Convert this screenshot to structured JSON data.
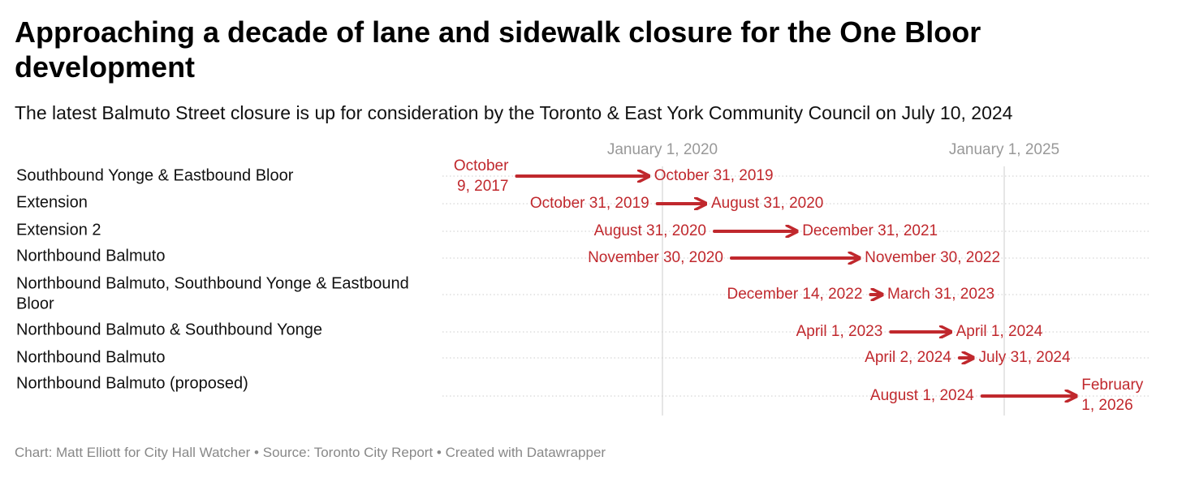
{
  "title": "Approaching a decade of lane and sidewalk closure for the One Bloor development",
  "subtitle": "The latest Balmuto Street closure is up for consideration by the Toronto & East York Community Council on July 10, 2024",
  "footer": "Chart: Matt Elliott for City Hall Watcher • Source: Toronto City Report • Created with Datawrapper",
  "colors": {
    "arrow": "#c0282d",
    "grid": "#cccccc",
    "axis_text": "#999999"
  },
  "chart_data": {
    "type": "range-arrow",
    "title": "Approaching a decade of lane and sidewalk closure for the One Bloor development",
    "subtitle": "The latest Balmuto Street closure is up for consideration by the Toronto & East York Community Council on July 10, 2024",
    "x_ticks": [
      {
        "date": "2020-01-01",
        "label": "January 1, 2020"
      },
      {
        "date": "2025-01-01",
        "label": "January 1, 2025"
      }
    ],
    "grid": true,
    "rows": [
      {
        "label": "Southbound Yonge & Eastbound Bloor",
        "start": "2017-10-09",
        "end": "2019-10-31",
        "start_label": "October 9, 2017",
        "end_label": "October 31, 2019"
      },
      {
        "label": "Extension",
        "start": "2019-10-31",
        "end": "2020-08-31",
        "start_label": "October 31, 2019",
        "end_label": "August 31, 2020"
      },
      {
        "label": "Extension 2",
        "start": "2020-08-31",
        "end": "2021-12-31",
        "start_label": "August 31, 2020",
        "end_label": "December 31, 2021"
      },
      {
        "label": "Northbound Balmuto",
        "start": "2020-11-30",
        "end": "2022-11-30",
        "start_label": "November 30, 2020",
        "end_label": "November 30, 2022"
      },
      {
        "label": "Northbound Balmuto, Southbound Yonge & Eastbound Bloor",
        "start": "2022-12-14",
        "end": "2023-03-31",
        "start_label": "December 14, 2022",
        "end_label": "March 31, 2023"
      },
      {
        "label": "Northbound Balmuto & Southbound Yonge",
        "start": "2023-04-01",
        "end": "2024-04-01",
        "start_label": "April 1, 2023",
        "end_label": "April 1, 2024"
      },
      {
        "label": "Northbound Balmuto",
        "start": "2024-04-02",
        "end": "2024-07-31",
        "start_label": "April 2, 2024",
        "end_label": "July 31, 2024"
      },
      {
        "label": "Northbound Balmuto (proposed)",
        "start": "2024-08-01",
        "end": "2026-02-01",
        "start_label": "August 1, 2024",
        "end_label": "February 1, 2026"
      }
    ]
  }
}
